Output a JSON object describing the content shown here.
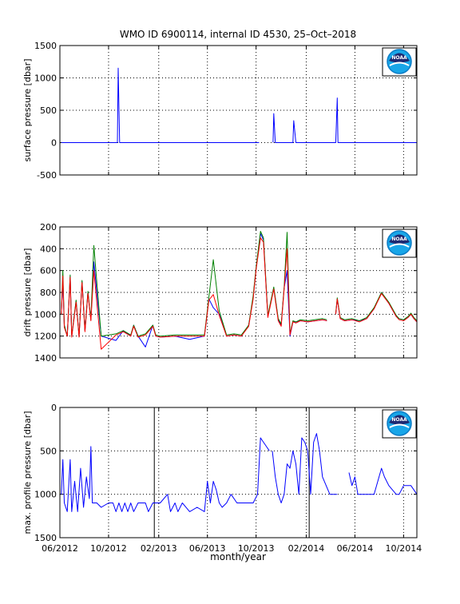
{
  "title": "WMO ID 6900114, internal ID 4530, 25–Oct–2018",
  "xlabel": "month/year",
  "x_ticks": [
    "06/2012",
    "10/2012",
    "02/2013",
    "06/2013",
    "10/2013",
    "02/2014",
    "06/2014",
    "10/2014"
  ],
  "logo": {
    "name": "noaa-logo",
    "text": "NOAA",
    "colors": {
      "navy": "#1d2a72",
      "sky": "#18a6e8",
      "ring": "#0c7cc6",
      "white": "#ffffff"
    }
  },
  "colors": {
    "blue": "#0000ff",
    "green": "#008000",
    "red": "#ff0000",
    "black": "#000000"
  },
  "chart_data": [
    {
      "type": "line",
      "ylabel": "surface pressure [dbar]",
      "xlim": [
        2012.42,
        2014.84
      ],
      "ylim": [
        -500,
        1500
      ],
      "y_ticks": [
        1500,
        1000,
        500,
        0,
        -500
      ],
      "grid": "dotted",
      "legend": "none",
      "series": [
        {
          "color": "blue",
          "x": [
            2012.43,
            2012.81,
            2012.815,
            2012.825,
            2013.77
          ],
          "y": [
            0,
            0,
            1150,
            0,
            0
          ]
        },
        {
          "color": "blue",
          "x": [
            2013.865,
            2013.87,
            2013.88,
            2014.0,
            2014.005,
            2014.02,
            2014.29,
            2014.3,
            2014.305,
            2014.32,
            2014.84
          ],
          "y": [
            0,
            450,
            0,
            0,
            340,
            0,
            0,
            690,
            0,
            0,
            0
          ]
        }
      ]
    },
    {
      "type": "line",
      "ylabel": "drift pressure [dbar]",
      "xlim": [
        2012.42,
        2014.84
      ],
      "ylim": [
        1400,
        200
      ],
      "y_ticks": [
        200,
        400,
        600,
        800,
        1000,
        1200,
        1400
      ],
      "y_reversed": true,
      "grid": "dotted",
      "legend": "none",
      "series": [
        {
          "color": "blue",
          "x": [
            2012.43,
            2012.44,
            2012.45,
            2012.47,
            2012.49,
            2012.5,
            2012.53,
            2012.55,
            2012.57,
            2012.59,
            2012.61,
            2012.63,
            2012.65,
            2012.7,
            2012.8,
            2012.85,
            2012.9,
            2012.92,
            2012.95,
            2013.0,
            2013.05,
            2013.07,
            2013.1,
            2013.2,
            2013.3,
            2013.4,
            2013.43,
            2013.46,
            2013.5,
            2013.55,
            2013.6,
            2013.65,
            2013.7,
            2013.73,
            2013.75,
            2013.78,
            2013.8,
            2013.83,
            2013.87,
            2013.9,
            2013.92,
            2013.94,
            2013.96,
            2013.98,
            2014.0,
            2014.02,
            2014.05,
            2014.1,
            2014.2,
            2014.23
          ],
          "y": [
            1000,
            700,
            1100,
            1200,
            650,
            1200,
            880,
            1200,
            700,
            1150,
            800,
            1050,
            520,
            1200,
            1240,
            1150,
            1200,
            1100,
            1200,
            1300,
            1100,
            1200,
            1210,
            1200,
            1230,
            1200,
            860,
            940,
            1000,
            1200,
            1190,
            1200,
            1100,
            850,
            580,
            260,
            320,
            1020,
            760,
            1050,
            1100,
            760,
            600,
            1200,
            1070,
            1070,
            1060,
            1070,
            1050,
            1060
          ]
        },
        {
          "color": "blue",
          "x": [
            2014.29,
            2014.3,
            2014.32,
            2014.35,
            2014.4,
            2014.45,
            2014.5,
            2014.55,
            2014.6,
            2014.65,
            2014.7,
            2014.72,
            2014.75,
            2014.78,
            2014.8,
            2014.82,
            2014.84
          ],
          "y": [
            1000,
            860,
            1040,
            1060,
            1050,
            1060,
            1040,
            950,
            800,
            900,
            1020,
            1040,
            1050,
            1030,
            1000,
            1040,
            1070
          ]
        },
        {
          "color": "green",
          "x": [
            2012.43,
            2012.44,
            2012.45,
            2012.47,
            2012.49,
            2012.5,
            2012.53,
            2012.55,
            2012.57,
            2012.59,
            2012.61,
            2012.63,
            2012.65,
            2012.7,
            2012.8,
            2012.85,
            2012.9,
            2012.92,
            2012.95,
            2013.0,
            2013.05,
            2013.07,
            2013.1,
            2013.2,
            2013.3,
            2013.4,
            2013.43,
            2013.46,
            2013.5,
            2013.55,
            2013.6,
            2013.65,
            2013.7,
            2013.73,
            2013.75,
            2013.78,
            2013.8,
            2013.83,
            2013.87,
            2013.9,
            2013.92,
            2013.94,
            2013.96,
            2013.98,
            2014.0,
            2014.02,
            2014.05,
            2014.1,
            2014.2,
            2014.23
          ],
          "y": [
            1000,
            600,
            1100,
            1200,
            640,
            1200,
            870,
            1200,
            690,
            1150,
            790,
            1050,
            370,
            1200,
            1180,
            1150,
            1190,
            1100,
            1200,
            1180,
            1100,
            1190,
            1200,
            1190,
            1190,
            1190,
            840,
            500,
            970,
            1190,
            1180,
            1190,
            1100,
            830,
            570,
            240,
            300,
            1010,
            750,
            1040,
            1090,
            750,
            250,
            1180,
            1060,
            1070,
            1050,
            1060,
            1040,
            1050
          ]
        },
        {
          "color": "green",
          "x": [
            2014.29,
            2014.3,
            2014.32,
            2014.35,
            2014.4,
            2014.45,
            2014.5,
            2014.55,
            2014.6,
            2014.65,
            2014.7,
            2014.72,
            2014.75,
            2014.78,
            2014.8,
            2014.82,
            2014.84
          ],
          "y": [
            990,
            850,
            1030,
            1050,
            1040,
            1060,
            1030,
            940,
            800,
            890,
            1010,
            1040,
            1050,
            1020,
            990,
            1030,
            1060
          ]
        },
        {
          "color": "red",
          "x": [
            2012.43,
            2012.44,
            2012.45,
            2012.47,
            2012.49,
            2012.5,
            2012.53,
            2012.55,
            2012.57,
            2012.59,
            2012.61,
            2012.63,
            2012.65,
            2012.7,
            2012.8,
            2012.85,
            2012.9,
            2012.92,
            2012.95,
            2013.0,
            2013.05,
            2013.07,
            2013.1,
            2013.2,
            2013.3,
            2013.4,
            2013.43,
            2013.46,
            2013.5,
            2013.55,
            2013.6,
            2013.65,
            2013.7,
            2013.73,
            2013.75,
            2013.78,
            2013.8,
            2013.83,
            2013.87,
            2013.9,
            2013.92,
            2013.94,
            2013.96,
            2013.98,
            2014.0,
            2014.02,
            2014.05,
            2014.1,
            2014.2,
            2014.23
          ],
          "y": [
            1000,
            650,
            1120,
            1200,
            660,
            1210,
            890,
            1210,
            710,
            1160,
            810,
            1060,
            600,
            1320,
            1190,
            1160,
            1200,
            1110,
            1210,
            1190,
            1110,
            1200,
            1210,
            1200,
            1200,
            1200,
            870,
            820,
            1010,
            1200,
            1190,
            1200,
            1110,
            860,
            590,
            300,
            340,
            1030,
            770,
            1060,
            1110,
            770,
            400,
            1190,
            1070,
            1080,
            1060,
            1070,
            1050,
            1060
          ]
        },
        {
          "color": "red",
          "x": [
            2014.29,
            2014.3,
            2014.32,
            2014.35,
            2014.4,
            2014.45,
            2014.5,
            2014.55,
            2014.6,
            2014.65,
            2014.7,
            2014.72,
            2014.75,
            2014.78,
            2014.8,
            2014.82,
            2014.84
          ],
          "y": [
            1000,
            860,
            1040,
            1060,
            1050,
            1070,
            1040,
            950,
            810,
            900,
            1020,
            1050,
            1060,
            1030,
            1000,
            1040,
            1070
          ]
        }
      ]
    },
    {
      "type": "line",
      "ylabel": "max. profile pressure [dbar]",
      "xlim": [
        2012.42,
        2014.84
      ],
      "ylim": [
        1500,
        0
      ],
      "y_ticks": [
        0,
        500,
        1000,
        1500
      ],
      "y_reversed": true,
      "grid": "dotted",
      "legend": "none",
      "vertical_lines": [
        2013.06,
        2014.11
      ],
      "series": [
        {
          "color": "blue",
          "x": [
            2012.43,
            2012.44,
            2012.45,
            2012.47,
            2012.49,
            2012.5,
            2012.52,
            2012.54,
            2012.56,
            2012.58,
            2012.6,
            2012.62,
            2012.63,
            2012.64,
            2012.67,
            2012.7,
            2012.75,
            2012.78,
            2012.8,
            2012.82,
            2012.84,
            2012.86,
            2012.88,
            2012.9,
            2012.92,
            2012.95,
            2013.0,
            2013.02,
            2013.05,
            2013.1,
            2013.15,
            2013.17,
            2013.2,
            2013.22,
            2013.25,
            2013.3,
            2013.35,
            2013.4,
            2013.42,
            2013.44,
            2013.46,
            2013.48,
            2013.5,
            2013.52,
            2013.55,
            2013.58,
            2013.62,
            2013.66,
            2013.7,
            2013.73,
            2013.76,
            2013.78,
            2013.8,
            2013.82,
            2013.84
          ],
          "y": [
            1000,
            600,
            1100,
            1200,
            600,
            1200,
            850,
            1200,
            700,
            1150,
            800,
            1050,
            450,
            1100,
            1100,
            1150,
            1100,
            1100,
            1200,
            1100,
            1200,
            1100,
            1200,
            1100,
            1200,
            1100,
            1100,
            1200,
            1100,
            1100,
            1000,
            1200,
            1100,
            1200,
            1100,
            1200,
            1150,
            1200,
            850,
            1100,
            850,
            950,
            1100,
            1150,
            1100,
            1000,
            1100,
            1100,
            1100,
            1100,
            1000,
            350,
            400,
            450,
            500
          ]
        },
        {
          "color": "blue",
          "x": [
            2013.86,
            2013.88,
            2013.9,
            2013.92,
            2013.94,
            2013.96,
            2013.98,
            2014.0,
            2014.02,
            2014.04,
            2014.06,
            2014.08,
            2014.1,
            2014.12,
            2014.14,
            2014.16,
            2014.18,
            2014.2,
            2014.25,
            2014.3
          ],
          "y": [
            500,
            800,
            1000,
            1100,
            1000,
            650,
            700,
            500,
            650,
            1000,
            350,
            400,
            500,
            1000,
            400,
            300,
            500,
            800,
            1000,
            1000
          ]
        },
        {
          "color": "blue",
          "x": [
            2014.38,
            2014.4,
            2014.42,
            2014.44,
            2014.5,
            2014.55,
            2014.6,
            2014.62,
            2014.65,
            2014.7,
            2014.72,
            2014.75,
            2014.8,
            2014.84
          ],
          "y": [
            750,
            900,
            800,
            1000,
            1000,
            1000,
            700,
            800,
            900,
            1000,
            1000,
            900,
            900,
            1000
          ]
        }
      ]
    }
  ]
}
